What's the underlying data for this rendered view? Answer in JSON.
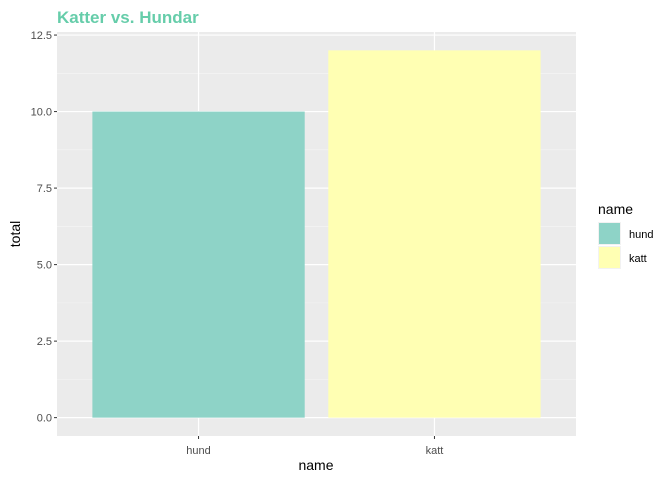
{
  "chart_data": {
    "type": "bar",
    "title": "Katter vs. Hundar",
    "xlabel": "name",
    "ylabel": "total",
    "categories": [
      "hund",
      "katt"
    ],
    "values": [
      10,
      12
    ],
    "bar_colors": [
      "#8ed3c7",
      "#ffffb3"
    ],
    "ylim": [
      -0.6,
      12.6
    ],
    "yticks": [
      0,
      2.5,
      5,
      7.5,
      10,
      12.5
    ],
    "ytick_labels": [
      "0.0",
      "2.5",
      "5.0",
      "7.5",
      "10.0",
      "12.5"
    ],
    "grid": true,
    "legend": {
      "title": "name",
      "position": "right",
      "entries": [
        "hund",
        "katt"
      ]
    },
    "colors": {
      "title": "#66cdaa",
      "panel_background": "#ebebeb",
      "grid_major": "#ffffff",
      "grid_minor": "#f5f5f5"
    }
  }
}
